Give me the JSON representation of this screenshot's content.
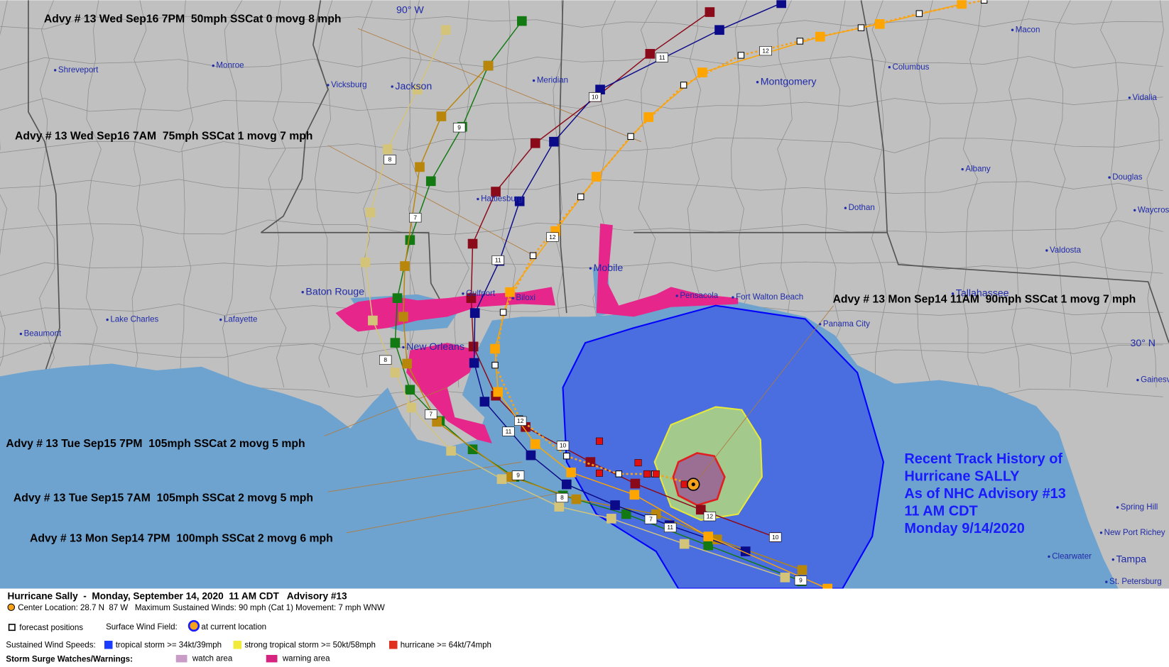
{
  "map": {
    "grid_labels": [
      "90° W",
      "30° N"
    ],
    "places": [
      "Shreveport",
      "Monroe",
      "Vicksburg",
      "Jackson",
      "Meridian",
      "Montgomery",
      "Columbus",
      "Macon",
      "Vidalia",
      "Albany",
      "Douglas",
      "Dothan",
      "Waycross",
      "Valdosta",
      "Tallahassee",
      "Hattiesburg",
      "Mobile",
      "Baton Rouge",
      "Lafayette",
      "Lake Charles",
      "Beaumont",
      "New Orleans",
      "Gulfport",
      "Biloxi",
      "Pensacola",
      "Fort Walton Beach",
      "Panama City",
      "Gainesville",
      "Spring Hill",
      "New Port Richey",
      "Clearwater",
      "Tampa",
      "St. Petersburg"
    ]
  },
  "advisories": [
    "Advy # 13 Wed Sep16 7PM  50mph SSCat 0 movg 8 mph",
    "Advy # 13 Wed Sep16 7AM  75mph SSCat 1 movg 7 mph",
    "Advy # 13 Mon Sep14 11AM  90mph SSCat 1 movg 7 mph",
    "Advy # 13 Tue Sep15 7PM  105mph SSCat 2 movg 5 mph",
    "Advy # 13 Tue Sep15 7AM  105mph SSCat 2 movg 5 mph",
    "Advy # 13 Mon Sep14 7PM  100mph SSCat 2 movg 6 mph"
  ],
  "forecast_labels": [
    "11",
    "12",
    "10",
    "9",
    "8",
    "7",
    "12",
    "11",
    "10",
    "12",
    "11",
    "9",
    "8",
    "7",
    "8",
    "7",
    "11",
    "12",
    "10",
    "9"
  ],
  "history": [
    "Recent Track History of",
    "Hurricane SALLY",
    "As of NHC Advisory #13",
    "11 AM CDT",
    "Monday 9/14/2020"
  ],
  "legend": {
    "title": "Hurricane Sally  -  Monday, September 14, 2020  11 AM CDT   Advisory #13",
    "center": "Center Location: 28.7 N  87 W   Maximum Sustained Winds: 90 mph (Cat 1) Movement: 7 mph WNW",
    "forecast_positions": "forecast positions",
    "wind_field": "Surface Wind Field:",
    "current_location": "at current location",
    "wind_speeds": "Sustained Wind Speeds:",
    "wind_classes": [
      "tropical storm >= 34kt/39mph",
      "strong tropical storm >= 50kt/58mph",
      "hurricane >= 64kt/74mph"
    ],
    "surge": "Storm Surge Watches/Warnings:",
    "surge_classes": [
      "watch area",
      "warning area"
    ]
  }
}
